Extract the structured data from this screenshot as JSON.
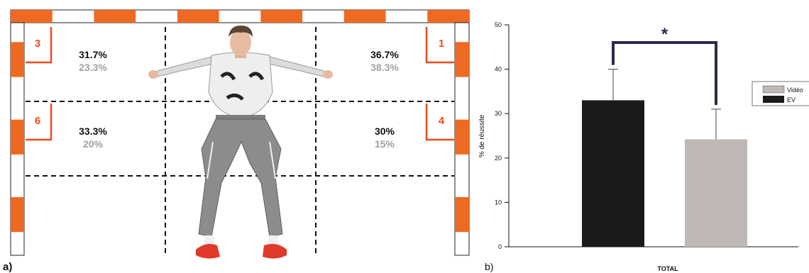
{
  "panel_a": {
    "label": "a)",
    "zones": [
      {
        "id": "3",
        "ev": "31.7%",
        "video": "23.3%"
      },
      {
        "id": "1",
        "ev": "36.7%",
        "video": "38.3%"
      },
      {
        "id": "6",
        "ev": "33.3%",
        "video": "20%"
      },
      {
        "id": "4",
        "ev": "30%",
        "video": "15%"
      }
    ],
    "colors": {
      "stripe": "#ee6a22",
      "ev_text": "#111111",
      "video_text": "#a0a0a0",
      "zone_number": "#ee4b1e",
      "grid_lines": "#111111"
    }
  },
  "panel_b": {
    "label": "b)"
  },
  "chart_data": {
    "type": "bar",
    "categories": [
      "TOTAL"
    ],
    "series": [
      {
        "name": "EV",
        "values": [
          33
        ],
        "error": [
          7
        ],
        "color": "#1a1a1a"
      },
      {
        "name": "Vidéo",
        "values": [
          24.2
        ],
        "error": [
          6.8
        ],
        "color": "#bfb8b4"
      }
    ],
    "xlabel": "TOTAL",
    "ylabel": "% de réussite",
    "ylim": [
      0,
      50
    ],
    "yticks": [
      "0",
      "10",
      "20",
      "30",
      "40",
      "50"
    ],
    "grid": false,
    "legend_position": "right",
    "significance": "*"
  }
}
